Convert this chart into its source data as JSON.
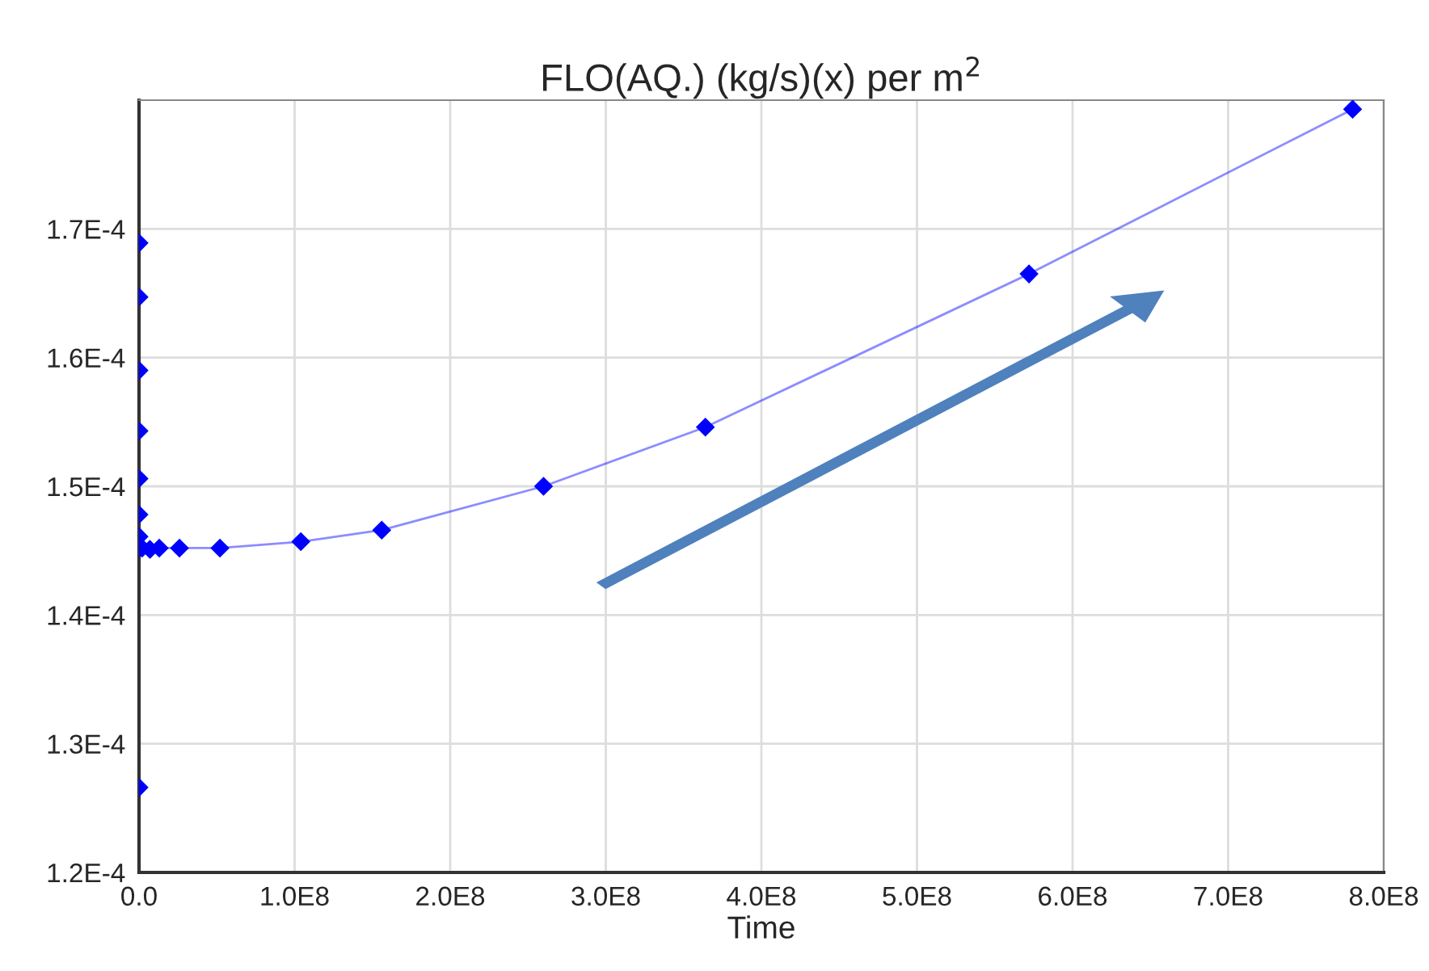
{
  "chart_data": {
    "type": "line",
    "title": "FLO(AQ.) (kg/s)(x) per m$^{2}$",
    "xlabel": "Time",
    "series": [
      {
        "color": "#0000ff",
        "x": [
          0,
          0,
          0,
          0,
          0,
          0,
          0,
          0,
          0,
          2000000,
          7000000,
          13000000,
          26000000,
          52000000,
          104000000,
          156000000,
          260000000,
          364000000,
          572000000,
          780000000
        ],
        "values": [
          0.0001266,
          0.0001689,
          0.0001647,
          0.000159,
          0.0001543,
          0.0001506,
          0.0001478,
          0.0001461,
          0.0001452,
          0.0001452,
          0.0001451,
          0.0001452,
          0.0001452,
          0.0001452,
          0.0001457,
          0.0001466,
          0.00015,
          0.0001546,
          0.0001665,
          0.0001793
        ]
      }
    ],
    "xlim": [
      0,
      800000000
    ],
    "ylim": [
      0.00012,
      0.00018
    ],
    "xticks": [
      {
        "value": 0,
        "label": "0.0"
      },
      {
        "value": 100000000,
        "label": "1.0E8"
      },
      {
        "value": 200000000,
        "label": "2.0E8"
      },
      {
        "value": 300000000,
        "label": "3.0E8"
      },
      {
        "value": 400000000,
        "label": "4.0E8"
      },
      {
        "value": 500000000,
        "label": "5.0E8"
      },
      {
        "value": 600000000,
        "label": "6.0E8"
      },
      {
        "value": 700000000,
        "label": "7.0E8"
      },
      {
        "value": 800000000,
        "label": "8.0E8"
      }
    ],
    "yticks": [
      {
        "value": 0.00012,
        "label": "1.2E-4"
      },
      {
        "value": 0.00013,
        "label": "1.3E-4"
      },
      {
        "value": 0.00014,
        "label": "1.4E-4"
      },
      {
        "value": 0.00015,
        "label": "1.5E-4"
      },
      {
        "value": 0.00016,
        "label": "1.6E-4"
      },
      {
        "value": 0.00017,
        "label": "1.7E-4"
      }
    ],
    "grid": true,
    "marker": "diamond",
    "line_style": "solid"
  }
}
